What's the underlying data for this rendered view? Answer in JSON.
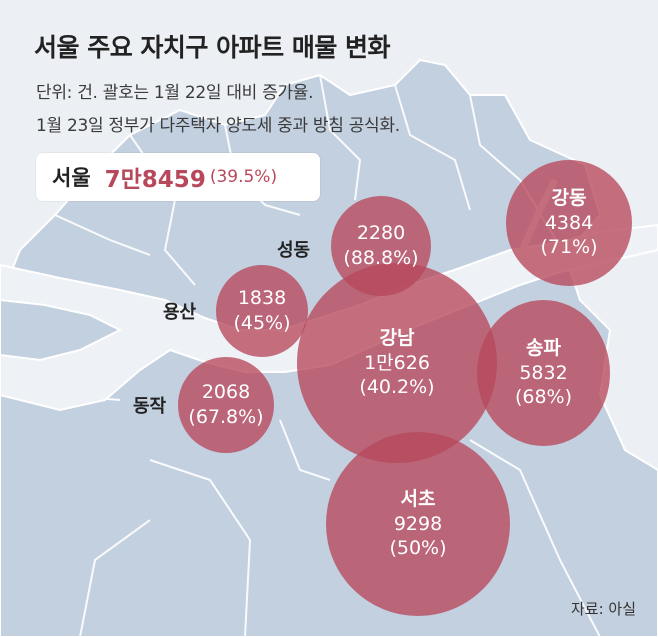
{
  "title": "서울 주요 자치구 아파트 매물 변화",
  "subtitle_lines": [
    "단위: 건. 괄호는 1월 22일 대비 증가율.",
    "1월 23일 정부가 다주택자 양도세 중과 방침 공식화."
  ],
  "total": {
    "label": "서울",
    "value": "7만8459",
    "rate": "(39.5%)"
  },
  "districts": [
    {
      "id": "gangnam",
      "name": "강남",
      "count": "1만626",
      "rate": "(40.2%)",
      "listings": 10626,
      "increase_pct": 40.2
    },
    {
      "id": "seocho",
      "name": "서초",
      "count": "9298",
      "rate": "(50%)",
      "listings": 9298,
      "increase_pct": 50
    },
    {
      "id": "songpa",
      "name": "송파",
      "count": "5832",
      "rate": "(68%)",
      "listings": 5832,
      "increase_pct": 68
    },
    {
      "id": "gangdong",
      "name": "강동",
      "count": "4384",
      "rate": "(71%)",
      "listings": 4384,
      "increase_pct": 71
    },
    {
      "id": "seongdong",
      "name": "성동",
      "count": "2280",
      "rate": "(88.8%)",
      "listings": 2280,
      "increase_pct": 88.8
    },
    {
      "id": "dongjak",
      "name": "동작",
      "count": "2068",
      "rate": "(67.8%)",
      "listings": 2068,
      "increase_pct": 67.8
    },
    {
      "id": "yongsan",
      "name": "용산",
      "count": "1838",
      "rate": "(45%)",
      "listings": 1838,
      "increase_pct": 45
    }
  ],
  "source": "자료: 아실",
  "colors": {
    "bubble": "#b7485b",
    "accent_text": "#b7485b",
    "background": "#eceff3",
    "land": "#c3d0e0",
    "river": "#eef1f5"
  }
}
